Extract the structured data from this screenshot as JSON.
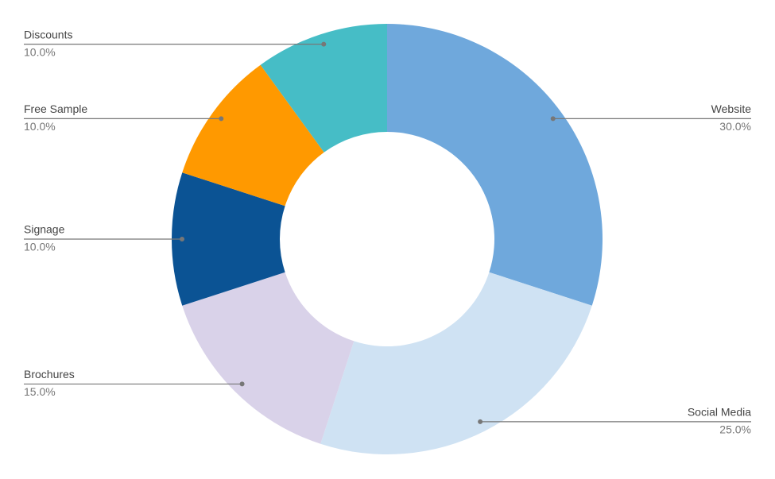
{
  "chart_data": {
    "type": "donut",
    "categories": [
      "Website",
      "Social Media",
      "Brochures",
      "Signage",
      "Free Sample",
      "Discounts"
    ],
    "values": [
      30,
      25,
      15,
      10,
      10,
      10
    ],
    "value_labels": [
      "30.0%",
      "25.0%",
      "15.0%",
      "10.0%",
      "10.0%",
      "10.0%"
    ],
    "colors": [
      "#6fa8dc",
      "#cfe2f3",
      "#d9d2e9",
      "#0b5394",
      "#ff9900",
      "#46bdc6"
    ]
  }
}
